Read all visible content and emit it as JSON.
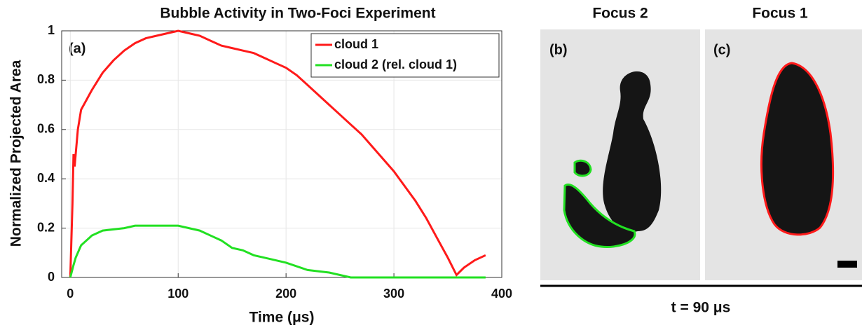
{
  "chart_data": {
    "type": "line",
    "title": "Bubble Activity in Two-Foci Experiment",
    "xlabel": "Time (μs)",
    "ylabel": "Normalized Projected Area",
    "annotations": [
      "(a)"
    ],
    "xlim": [
      -8,
      400
    ],
    "ylim": [
      0,
      1
    ],
    "xticks": [
      0,
      100,
      200,
      300,
      400
    ],
    "yticks": [
      0,
      0.2,
      0.4,
      0.6,
      0.8,
      1
    ],
    "grid": true,
    "legend": "upper right",
    "series": [
      {
        "name": "cloud 1",
        "color": "#ff1a1a",
        "x": [
          0,
          2,
          3,
          4,
          5,
          7,
          10,
          15,
          20,
          30,
          40,
          50,
          60,
          70,
          80,
          90,
          100,
          110,
          120,
          130,
          140,
          150,
          160,
          170,
          180,
          190,
          200,
          210,
          220,
          230,
          240,
          250,
          260,
          270,
          280,
          290,
          300,
          310,
          320,
          330,
          340,
          350,
          358,
          365,
          375,
          385
        ],
        "values": [
          0,
          0.3,
          0.5,
          0.45,
          0.5,
          0.6,
          0.68,
          0.72,
          0.76,
          0.83,
          0.88,
          0.92,
          0.95,
          0.97,
          0.98,
          0.99,
          1.0,
          0.99,
          0.98,
          0.96,
          0.94,
          0.93,
          0.92,
          0.91,
          0.89,
          0.87,
          0.85,
          0.82,
          0.78,
          0.74,
          0.7,
          0.66,
          0.62,
          0.58,
          0.53,
          0.48,
          0.43,
          0.37,
          0.31,
          0.24,
          0.16,
          0.08,
          0.01,
          0.04,
          0.07,
          0.09
        ]
      },
      {
        "name": "cloud 2 (rel. cloud 1)",
        "color": "#22e022",
        "x": [
          0,
          3,
          5,
          10,
          20,
          30,
          50,
          60,
          80,
          100,
          110,
          120,
          130,
          140,
          150,
          160,
          170,
          180,
          200,
          220,
          240,
          260,
          300,
          385
        ],
        "values": [
          0,
          0.05,
          0.08,
          0.13,
          0.17,
          0.19,
          0.2,
          0.21,
          0.21,
          0.21,
          0.2,
          0.19,
          0.17,
          0.15,
          0.12,
          0.11,
          0.09,
          0.08,
          0.06,
          0.03,
          0.02,
          0,
          0,
          0
        ]
      }
    ]
  },
  "panels": [
    {
      "title": "Focus 2",
      "label": "(b)"
    },
    {
      "title": "Focus 1",
      "label": "(c)"
    }
  ],
  "caption": "t = 90 μs"
}
